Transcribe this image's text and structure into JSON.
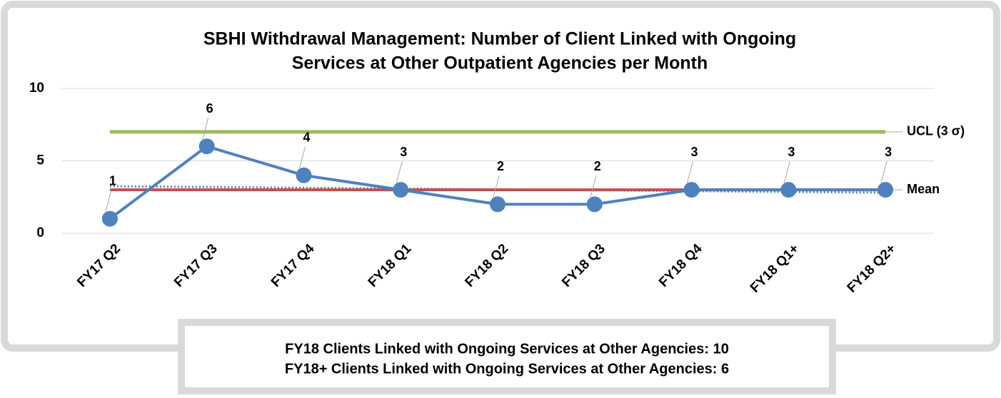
{
  "chart_data": {
    "type": "line",
    "title": [
      "SBHI Withdrawal Management: Number of Client Linked with Ongoing",
      "Services at Other Outpatient Agencies per Month"
    ],
    "categories": [
      "FY17 Q2",
      "FY17 Q3",
      "FY17 Q4",
      "FY18 Q1",
      "FY18 Q2",
      "FY18 Q3",
      "FY18 Q4",
      "FY18 Q1+",
      "FY18 Q2+"
    ],
    "values": [
      1,
      6,
      4,
      3,
      2,
      2,
      3,
      3,
      3
    ],
    "color": "#4f81bd",
    "ylim": [
      0,
      10
    ],
    "yticks": [
      0,
      5,
      10
    ],
    "grid": true,
    "ucl": {
      "label": "UCL (3 σ)",
      "value": 7,
      "color": "#9bbb59"
    },
    "mean": {
      "label": "Mean",
      "value": 3,
      "color": "#c0504d"
    },
    "trend": {
      "start": 3.25,
      "end": 2.8,
      "color": "#4f81bd"
    },
    "summary": [
      "FY18 Clients Linked with Ongoing Services at Other Agencies: 10",
      "FY18+ Clients Linked with Ongoing Services at Other Agencies: 6"
    ]
  }
}
